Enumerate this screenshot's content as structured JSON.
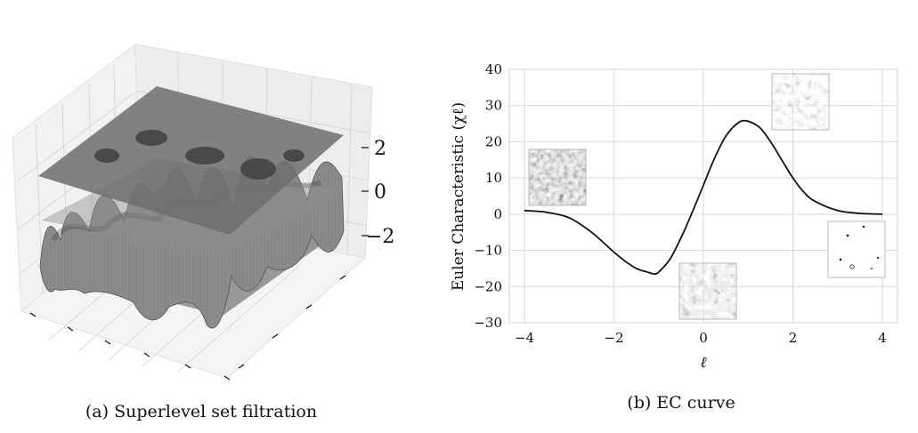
{
  "panel_a": {
    "caption": "(a) Superlevel set filtration",
    "z_tick_labels": [
      "2",
      "0",
      "−2"
    ]
  },
  "panel_b": {
    "caption": "(b) EC curve"
  },
  "chart_data": [
    {
      "type": "surface",
      "title": "(a) Superlevel set filtration",
      "description_values": {
        "z_ticks": [
          2,
          0,
          -2
        ],
        "filtration_planes_z": [
          2,
          0,
          -2
        ]
      }
    },
    {
      "type": "line",
      "title": "(b) EC curve",
      "xlabel": "ℓ",
      "ylabel": "Euler Characteristic (χℓ)",
      "xlim": [
        -4,
        4
      ],
      "ylim": [
        -30,
        40
      ],
      "xticks": [
        -4,
        -2,
        0,
        2,
        4
      ],
      "xtick_labels": [
        "−4",
        "−2",
        "0",
        "2",
        "4"
      ],
      "yticks": [
        -30,
        -20,
        -10,
        0,
        10,
        20,
        30,
        40
      ],
      "ytick_labels": [
        "−30",
        "−20",
        "−10",
        "0",
        "10",
        "20",
        "30",
        "40"
      ],
      "grid": true,
      "series": [
        {
          "x": [
            -4.0,
            -3.5,
            -3.0,
            -2.5,
            -2.0,
            -1.75,
            -1.5,
            -1.25,
            -1.1,
            -1.0,
            -0.75,
            -0.5,
            -0.25,
            0.0,
            0.25,
            0.5,
            0.75,
            0.95,
            1.25,
            1.5,
            1.75,
            2.0,
            2.25,
            2.5,
            3.0,
            3.5,
            4.0
          ],
          "y": [
            1.0,
            0.5,
            -1.0,
            -5.0,
            -10.5,
            -13.0,
            -15.0,
            -16.0,
            -16.5,
            -16.0,
            -12.5,
            -6.5,
            0.5,
            8.0,
            15.5,
            21.5,
            25.0,
            25.8,
            24.0,
            20.0,
            15.0,
            10.0,
            6.0,
            3.5,
            1.0,
            0.2,
            0.0
          ]
        }
      ],
      "insets": [
        {
          "name": "inset-noise",
          "anchor_level": -3.0
        },
        {
          "name": "inset-low-threshold",
          "anchor_level": -1.0
        },
        {
          "name": "inset-high-threshold",
          "anchor_level": 1.5
        },
        {
          "name": "inset-sparse",
          "anchor_level": 3.5
        }
      ]
    }
  ]
}
